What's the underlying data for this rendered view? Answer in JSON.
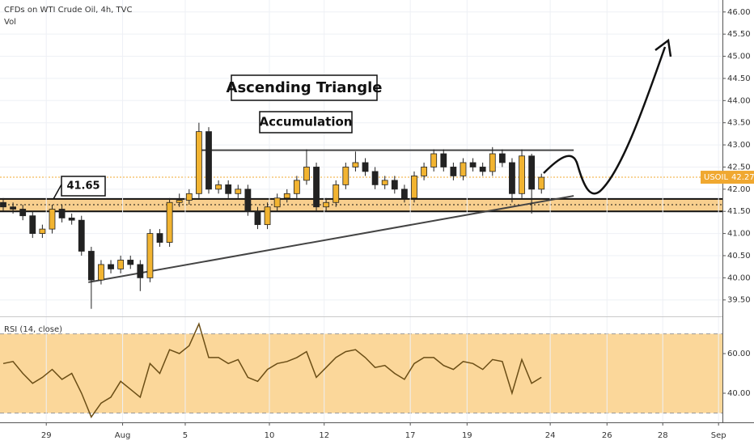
{
  "chart_data": [
    {
      "type": "candlestick",
      "title": "CFDs on WTI Crude Oil, 4h, TVC",
      "subtitle": "Vol",
      "symbol": "USOIL",
      "last_price": 42.27,
      "last_price_color": "#f0a830",
      "up_color": "#f2b431",
      "down_color": "#222222",
      "open": [
        41.7,
        41.6,
        41.55,
        41.4,
        41.0,
        41.1,
        41.55,
        41.35,
        41.3,
        40.6,
        39.95,
        40.3,
        40.2,
        40.4,
        40.3,
        40.0,
        41.0,
        40.8,
        41.7,
        41.75,
        41.9,
        43.3,
        42.0,
        42.1,
        41.9,
        42.0,
        41.5,
        41.2,
        41.6,
        41.8,
        41.9,
        42.2,
        42.5,
        41.6,
        41.7,
        42.1,
        42.5,
        42.6,
        42.4,
        42.1,
        42.2,
        42.0,
        41.8,
        42.3,
        42.5,
        42.8,
        42.5,
        42.3,
        42.6,
        42.5,
        42.4,
        42.8,
        42.6,
        41.9,
        42.75,
        42.0
      ],
      "high": [
        41.8,
        41.7,
        41.65,
        41.5,
        41.2,
        41.65,
        41.65,
        41.45,
        41.4,
        40.7,
        40.4,
        40.4,
        40.5,
        40.5,
        40.4,
        41.1,
        41.1,
        41.8,
        41.9,
        42.0,
        43.5,
        43.4,
        42.2,
        42.2,
        42.1,
        42.1,
        41.6,
        41.7,
        41.9,
        42.0,
        42.3,
        42.9,
        42.6,
        41.8,
        42.2,
        42.6,
        42.85,
        42.7,
        42.5,
        42.3,
        42.3,
        42.1,
        42.4,
        42.6,
        42.9,
        42.9,
        42.6,
        42.7,
        42.7,
        42.6,
        42.95,
        42.9,
        42.7,
        42.9,
        42.8,
        42.35
      ],
      "low": [
        41.5,
        41.45,
        41.3,
        40.9,
        40.9,
        41.0,
        41.25,
        41.2,
        40.5,
        39.3,
        39.85,
        40.1,
        40.1,
        40.2,
        39.7,
        39.9,
        40.7,
        40.7,
        41.6,
        41.65,
        41.8,
        41.9,
        41.9,
        41.8,
        41.8,
        41.4,
        41.1,
        41.1,
        41.5,
        41.7,
        41.8,
        42.1,
        41.5,
        41.5,
        41.6,
        42.0,
        42.4,
        42.3,
        42.0,
        42.0,
        41.9,
        41.7,
        41.7,
        42.2,
        42.4,
        42.4,
        42.2,
        42.2,
        42.4,
        42.3,
        42.3,
        42.5,
        41.7,
        41.8,
        41.45,
        41.9
      ],
      "close": [
        41.6,
        41.55,
        41.4,
        41.0,
        41.1,
        41.55,
        41.35,
        41.3,
        40.6,
        39.95,
        40.3,
        40.2,
        40.4,
        40.3,
        40.0,
        41.0,
        40.8,
        41.7,
        41.75,
        41.9,
        43.3,
        42.0,
        42.1,
        41.9,
        42.0,
        41.5,
        41.2,
        41.6,
        41.8,
        41.9,
        42.2,
        42.5,
        41.6,
        41.7,
        42.1,
        42.5,
        42.6,
        42.4,
        42.1,
        42.2,
        42.0,
        41.8,
        42.3,
        42.5,
        42.8,
        42.5,
        42.3,
        42.6,
        42.5,
        42.4,
        42.8,
        42.6,
        41.9,
        42.75,
        42.0,
        42.27
      ],
      "xlim": [
        -0.33,
        73.5
      ],
      "ylim": [
        39.13,
        46.27
      ],
      "yticks": [
        {
          "value": 39.5,
          "label": "39.50"
        },
        {
          "value": 40,
          "label": "40.00"
        },
        {
          "value": 40.5,
          "label": "40.50"
        },
        {
          "value": 41,
          "label": "41.00"
        },
        {
          "value": 41.5,
          "label": "41.50"
        },
        {
          "value": 42,
          "label": "42.00"
        },
        {
          "value": 42.5,
          "label": "42.50"
        },
        {
          "value": 43,
          "label": "43.00"
        },
        {
          "value": 43.5,
          "label": "43.50"
        },
        {
          "value": 44,
          "label": "44.00"
        },
        {
          "value": 44.5,
          "label": "44.50"
        },
        {
          "value": 45,
          "label": "45.00"
        },
        {
          "value": 45.5,
          "label": "45.50"
        },
        {
          "value": 46,
          "label": "46.00"
        }
      ],
      "grid": true,
      "zone": [
        41.5,
        41.78
      ],
      "zone_color": "#f7c77a",
      "callout": 41.65,
      "resistance": [
        [
          20.2,
          42.88
        ],
        [
          58.3,
          42.88
        ]
      ],
      "trendline": [
        [
          8.7,
          39.9
        ],
        [
          58.3,
          41.85
        ]
      ],
      "annotations": [
        "Ascending Triangle",
        "Accumulation"
      ]
    },
    {
      "type": "line",
      "title": "RSI (14, close)",
      "color": "#6b4e16",
      "band": [
        30,
        70
      ],
      "band_color": "#fbd79a",
      "values": [
        55,
        56,
        50,
        45,
        48,
        52,
        47,
        50,
        40,
        28,
        35,
        38,
        46,
        42,
        38,
        55,
        50,
        62,
        60,
        64,
        75,
        58,
        58,
        55,
        57,
        48,
        46,
        52,
        55,
        56,
        58,
        61,
        48,
        53,
        58,
        61,
        62,
        58,
        53,
        54,
        50,
        47,
        55,
        58,
        58,
        54,
        52,
        56,
        55,
        52,
        57,
        56,
        40,
        57,
        45,
        48
      ],
      "xlim": [
        -0.33,
        73.5
      ],
      "ylim": [
        25.3,
        78.4
      ],
      "yticks": [
        {
          "value": 40,
          "label": "40.00"
        },
        {
          "value": 60,
          "label": "60.00"
        }
      ],
      "xticks": [
        {
          "value": 4.4,
          "label": "29"
        },
        {
          "value": 12.2,
          "label": "Aug"
        },
        {
          "value": 18.6,
          "label": "5"
        },
        {
          "value": 27.2,
          "label": "10"
        },
        {
          "value": 32.8,
          "label": "12"
        },
        {
          "value": 41.6,
          "label": "17"
        },
        {
          "value": 47.4,
          "label": "19"
        },
        {
          "value": 55.9,
          "label": "24"
        },
        {
          "value": 61.7,
          "label": "26"
        },
        {
          "value": 67.4,
          "label": "28"
        },
        {
          "value": 73.1,
          "label": "Sep"
        }
      ]
    }
  ]
}
